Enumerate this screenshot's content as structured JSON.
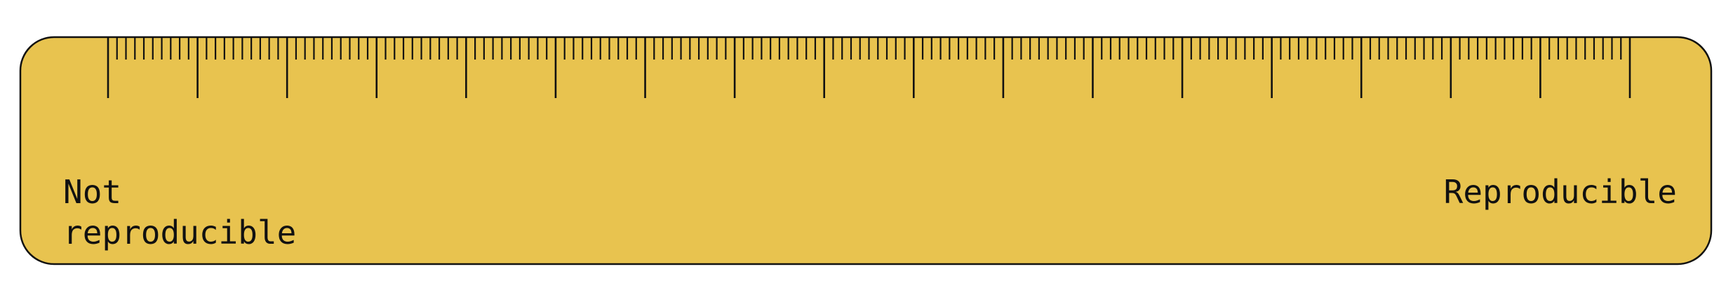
{
  "ruler": {
    "fill_color": "#e8c34f",
    "stroke_color": "#111111",
    "major_ticks": 18,
    "minor_divisions": 10,
    "left_label_line1": "Not",
    "left_label_line2": "reproducible",
    "right_label": "Reproducible"
  }
}
